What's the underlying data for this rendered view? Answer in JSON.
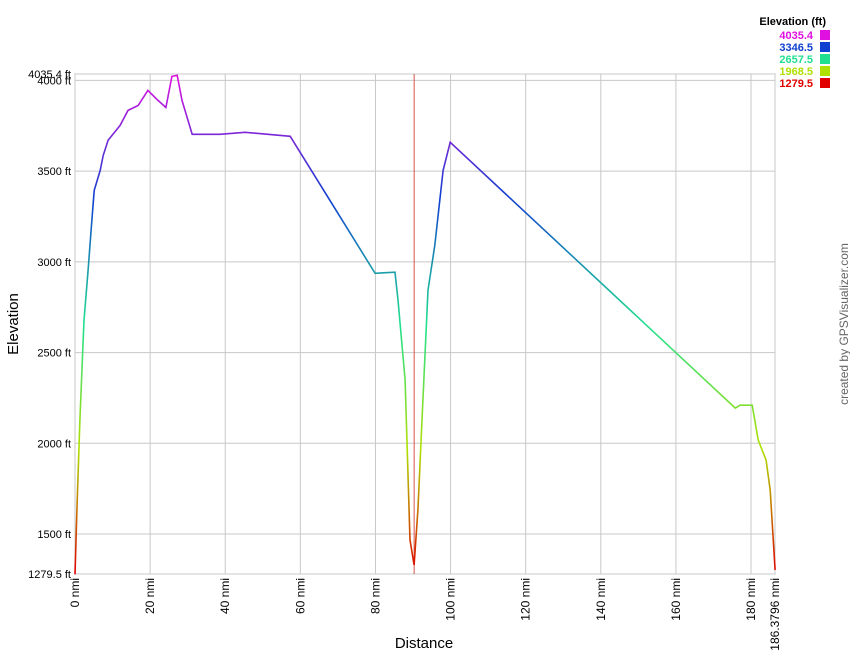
{
  "chart_data": {
    "type": "line",
    "x_label": "Distance",
    "y_label": "Elevation",
    "credit": "created by GPSVisualizer.com",
    "x": [
      0,
      0.5,
      1.3,
      2.4,
      3.5,
      4.3,
      5.1,
      6.7,
      7.5,
      8.8,
      12,
      14.1,
      16.8,
      19.4,
      22.1,
      24.2,
      25.8,
      27.2,
      28.5,
      31.2,
      38.6,
      45.3,
      57.3,
      79.9,
      85.2,
      86,
      87.9,
      89.2,
      90.3,
      91.3,
      92.4,
      94,
      95.8,
      98,
      99.9,
      175.8,
      177.1,
      180.3,
      181.9,
      184,
      185.1,
      186.4
    ],
    "values": [
      1278,
      1632,
      2128,
      2678,
      2954,
      3174,
      3394,
      3504,
      3587,
      3670,
      3752,
      3835,
      3862,
      3945,
      3890,
      3851,
      4022,
      4028,
      3890,
      3703,
      3703,
      3714,
      3692,
      2937,
      2943,
      2789,
      2348,
      1467,
      1329,
      1632,
      2128,
      2844,
      3091,
      3504,
      3659,
      2194,
      2210,
      2210,
      2018,
      1907,
      1742,
      1302
    ],
    "xlim": [
      0,
      186.3796
    ],
    "ylim": [
      1279.5,
      4035.4
    ],
    "xticks": [
      {
        "value": 0,
        "label": "0 nmi"
      },
      {
        "value": 20,
        "label": "20 nmi"
      },
      {
        "value": 40,
        "label": "40 nmi"
      },
      {
        "value": 60,
        "label": "60 nmi"
      },
      {
        "value": 80,
        "label": "80 nmi"
      },
      {
        "value": 100,
        "label": "100 nmi"
      },
      {
        "value": 120,
        "label": "120 nmi"
      },
      {
        "value": 140,
        "label": "140 nmi"
      },
      {
        "value": 160,
        "label": "160 nmi"
      },
      {
        "value": 180,
        "label": "180 nmi"
      },
      {
        "value": 186.3796,
        "label": "186.3796 nmi"
      }
    ],
    "yticks": [
      {
        "value": 1279.5,
        "label": "1279.5 ft"
      },
      {
        "value": 1500,
        "label": "1500 ft"
      },
      {
        "value": 2000,
        "label": "2000 ft"
      },
      {
        "value": 2500,
        "label": "2500 ft"
      },
      {
        "value": 3000,
        "label": "3000 ft"
      },
      {
        "value": 3500,
        "label": "3500 ft"
      },
      {
        "value": 4000,
        "label": "4000 ft"
      },
      {
        "value": 4035.4,
        "label": "4035.4 ft"
      }
    ],
    "grid": true,
    "cursor_x": 90.3,
    "cursor_color": "#d9534f",
    "color_scale": {
      "title": "Elevation (ft)",
      "stops": [
        {
          "value": 4035.4,
          "color": "#e010e0"
        },
        {
          "value": 3346.5,
          "color": "#1040d0"
        },
        {
          "value": 2657.5,
          "color": "#20e090"
        },
        {
          "value": 1968.5,
          "color": "#b0e000"
        },
        {
          "value": 1279.5,
          "color": "#e00000"
        }
      ]
    }
  }
}
